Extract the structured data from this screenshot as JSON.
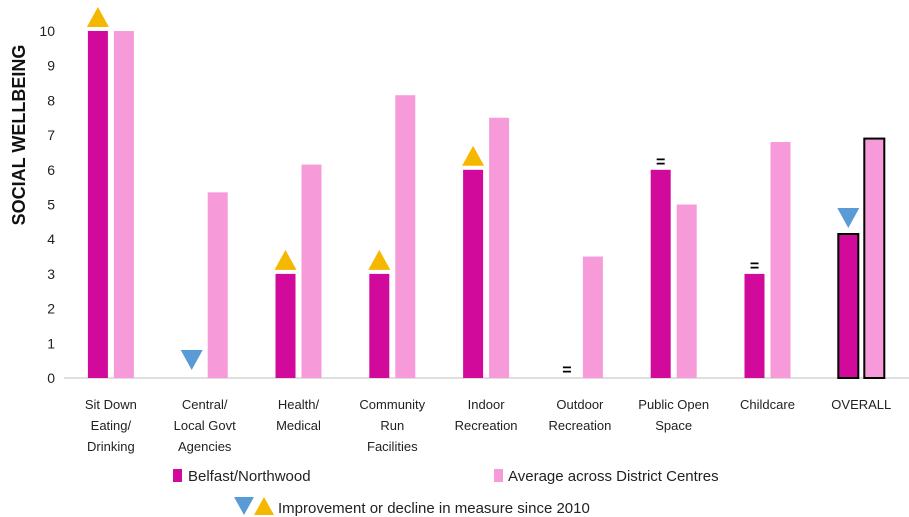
{
  "chart_data": {
    "type": "bar",
    "ylabel": "SOCIAL WELLBEING",
    "ylim": [
      0,
      10
    ],
    "yticks": [
      0,
      1,
      2,
      3,
      4,
      5,
      6,
      7,
      8,
      9,
      10
    ],
    "categories": [
      [
        "Sit Down",
        "Eating/",
        "Drinking"
      ],
      [
        "Central/",
        "Local Govt",
        "Agencies"
      ],
      [
        "Health/",
        "Medical"
      ],
      [
        "Community",
        "Run",
        "Facilities"
      ],
      [
        "Indoor",
        "Recreation"
      ],
      [
        "Outdoor",
        "Recreation"
      ],
      [
        "Public Open",
        "Space"
      ],
      [
        "Childcare"
      ],
      [
        "OVERALL"
      ]
    ],
    "series": [
      {
        "name": "Belfast/Northwood",
        "color": "#d10a9c",
        "values": [
          10,
          0,
          3,
          3,
          6,
          0,
          6,
          3,
          4.15
        ]
      },
      {
        "name": "Average across District Centres",
        "color": "#f79ad9",
        "values": [
          10,
          5.35,
          6.15,
          8.15,
          7.5,
          3.5,
          5.0,
          6.8,
          6.9
        ]
      }
    ],
    "change_markers": [
      {
        "category_index": 0,
        "marker": "up"
      },
      {
        "category_index": 1,
        "marker": "down"
      },
      {
        "category_index": 2,
        "marker": "up"
      },
      {
        "category_index": 3,
        "marker": "up"
      },
      {
        "category_index": 4,
        "marker": "up"
      },
      {
        "category_index": 5,
        "marker": "equal"
      },
      {
        "category_index": 6,
        "marker": "equal"
      },
      {
        "category_index": 7,
        "marker": "equal"
      },
      {
        "category_index": 8,
        "marker": "down"
      }
    ],
    "marker_colors": {
      "up": "#f5b800",
      "down": "#5b9bd5"
    },
    "legend": [
      {
        "label": "Belfast/Northwood",
        "color": "#d10a9c"
      },
      {
        "label": "Average across District Centres",
        "color": "#f79ad9"
      }
    ],
    "marker_legend": "Improvement or decline in measure since 2010",
    "equal_symbol": "=",
    "grid": false
  }
}
